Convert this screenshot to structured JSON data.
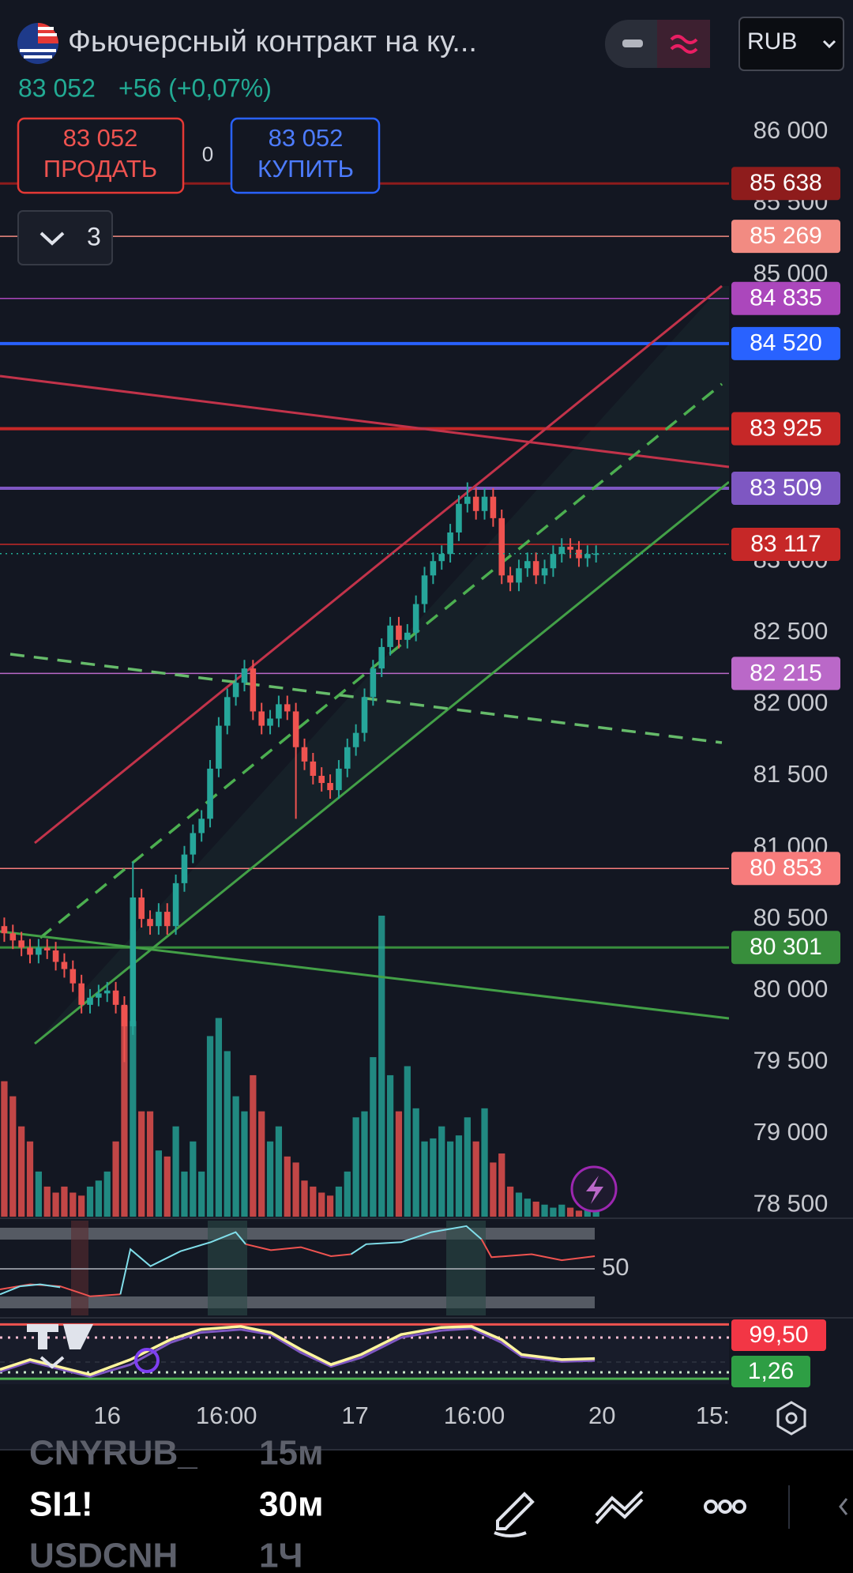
{
  "header": {
    "title": "Фьючерсный контракт на ку...",
    "price": "83 052",
    "change": "+56 (+0,07%)",
    "currency": "RUB"
  },
  "trade": {
    "sell_price": "83 052",
    "sell_label": "ПРОДАТЬ",
    "spread": "0",
    "buy_price": "83 052",
    "buy_label": "КУПИТЬ"
  },
  "layers_count": "3",
  "chart_data": {
    "type": "candlestick",
    "up_color": "#26a69a",
    "down_color": "#ef5350",
    "xlim": [
      0,
      85
    ],
    "xticks": [
      {
        "value": 12.5,
        "label": "16"
      },
      {
        "value": 26.4,
        "label": "16:00"
      },
      {
        "value": 41.4,
        "label": "17"
      },
      {
        "value": 55.3,
        "label": "16:00"
      },
      {
        "value": 70.2,
        "label": "20"
      },
      {
        "value": 83.1,
        "label": "15:"
      }
    ],
    "ylim": [
      78420,
      86920
    ],
    "yticks": [
      {
        "value": 86000,
        "label": "86 000"
      },
      {
        "value": 85500,
        "label": "85 500"
      },
      {
        "value": 85000,
        "label": "85 000"
      },
      {
        "value": 83000,
        "label": "83 000"
      },
      {
        "value": 82500,
        "label": "82 500"
      },
      {
        "value": 82000,
        "label": "82 000"
      },
      {
        "value": 81500,
        "label": "81 500"
      },
      {
        "value": 81000,
        "label": "81 000"
      },
      {
        "value": 80500,
        "label": "80 500"
      },
      {
        "value": 80000,
        "label": "80 000"
      },
      {
        "value": 79500,
        "label": "79 500"
      },
      {
        "value": 79000,
        "label": "79 000"
      },
      {
        "value": 78500,
        "label": "78 500"
      }
    ],
    "open": [
      80450,
      80400,
      80350,
      80300,
      80250,
      80300,
      80280,
      80200,
      80150,
      80050,
      79900,
      79950,
      79980,
      80000,
      79900,
      79750,
      80650,
      80500,
      80450,
      80550,
      80450,
      80750,
      80950,
      81100,
      81200,
      81550,
      81850,
      82050,
      82150,
      82250,
      81950,
      81850,
      81900,
      82000,
      81950,
      81700,
      81600,
      81500,
      81450,
      81400,
      81550,
      81700,
      81800,
      82050,
      82250,
      82400,
      82550,
      82450,
      82500,
      82700,
      82900,
      83000,
      83050,
      83200,
      83400,
      83450,
      83350,
      83450,
      83300,
      82900,
      82850,
      82950,
      83000,
      82900,
      82950,
      83050,
      83100,
      83080,
      83020,
      83050
    ],
    "high": [
      80510,
      80460,
      80410,
      80360,
      80360,
      80360,
      80340,
      80260,
      80210,
      80110,
      80010,
      80040,
      80060,
      80060,
      79960,
      80900,
      80710,
      80560,
      80610,
      80610,
      80810,
      81010,
      81160,
      81260,
      81610,
      81910,
      82110,
      82210,
      82310,
      82310,
      82010,
      81960,
      82060,
      82060,
      82010,
      81760,
      81660,
      81560,
      81510,
      81610,
      81760,
      81860,
      82110,
      82310,
      82460,
      82610,
      82610,
      82560,
      82760,
      82960,
      83060,
      83110,
      83260,
      83460,
      83550,
      83510,
      83510,
      83510,
      83360,
      82960,
      83010,
      83060,
      83060,
      83010,
      83110,
      83160,
      83160,
      83140,
      83110,
      83110
    ],
    "low": [
      80340,
      80290,
      80240,
      80190,
      80190,
      80220,
      80140,
      80090,
      79990,
      79840,
      79840,
      79890,
      79920,
      79840,
      79500,
      79690,
      80440,
      80390,
      80390,
      80390,
      80390,
      80690,
      80890,
      81040,
      81140,
      81490,
      81790,
      81990,
      82090,
      81890,
      81790,
      81790,
      81840,
      81890,
      81200,
      81540,
      81440,
      81390,
      81340,
      81340,
      81490,
      81640,
      81740,
      81990,
      82190,
      82340,
      82390,
      82390,
      82440,
      82640,
      82840,
      82940,
      82990,
      83140,
      83340,
      83290,
      83290,
      83240,
      82840,
      82790,
      82790,
      82890,
      82840,
      82840,
      82890,
      82990,
      83020,
      82960,
      82960,
      82990
    ],
    "close": [
      80400,
      80350,
      80300,
      80250,
      80300,
      80280,
      80200,
      80150,
      80050,
      79900,
      79950,
      79980,
      80000,
      79900,
      79750,
      80650,
      80500,
      80450,
      80550,
      80450,
      80750,
      80950,
      81100,
      81200,
      81550,
      81850,
      82050,
      82150,
      82250,
      81950,
      81850,
      81900,
      82000,
      81950,
      81700,
      81600,
      81500,
      81450,
      81400,
      81550,
      81700,
      81800,
      82050,
      82250,
      82400,
      82550,
      82450,
      82500,
      82700,
      82900,
      83000,
      83050,
      83200,
      83400,
      83450,
      83350,
      83450,
      83300,
      82900,
      82850,
      82950,
      83000,
      82900,
      82950,
      83050,
      83100,
      83080,
      83020,
      83050,
      83052
    ],
    "volume": [
      45,
      40,
      30,
      25,
      15,
      10,
      8,
      10,
      8,
      7,
      10,
      12,
      15,
      25,
      70,
      65,
      35,
      35,
      22,
      20,
      30,
      15,
      25,
      15,
      60,
      66,
      55,
      40,
      35,
      47,
      35,
      25,
      30,
      20,
      18,
      12,
      10,
      8,
      7,
      10,
      15,
      33,
      35,
      53,
      100,
      47,
      35,
      50,
      36,
      25,
      26,
      30,
      25,
      27,
      33,
      25,
      36,
      18,
      21,
      10,
      8,
      6,
      5,
      4,
      3,
      4,
      3,
      2,
      3,
      2
    ],
    "vlim": [
      0,
      100
    ],
    "levels": [
      {
        "value": 85638,
        "label": "85 638",
        "color": "#8e1c1c",
        "line_width": 3
      },
      {
        "value": 85269,
        "label": "85 269",
        "color": "#f28b82",
        "line_width": 1.5
      },
      {
        "value": 84835,
        "label": "84 835",
        "color": "#ab47bc",
        "line_width": 1.5
      },
      {
        "value": 84520,
        "label": "84 520",
        "color": "#2962ff",
        "line_width": 4
      },
      {
        "value": 83925,
        "label": "83 925",
        "color": "#c62828",
        "line_width": 4
      },
      {
        "value": 83509,
        "label": "83 509",
        "color": "#7e57c2",
        "line_width": 4
      },
      {
        "value": 83117,
        "label": "83 117",
        "color": "#c62828",
        "line_width": 1.5
      },
      {
        "value": 82215,
        "label": "82 215",
        "color": "#ba68c8",
        "line_width": 1.5
      },
      {
        "value": 80853,
        "label": "80 853",
        "color": "#f77c7c",
        "line_width": 1.5
      },
      {
        "value": 80301,
        "label": "80 301",
        "color": "#388e3c",
        "line_width": 3
      }
    ]
  },
  "indicators": {
    "rsi_tick": 50,
    "stoch_high": {
      "value": 99.5,
      "label": "99,50"
    },
    "stoch_low": {
      "value": 1.26,
      "label": "1,26"
    }
  },
  "watchlist": [
    {
      "symbol": "CNYRUB_",
      "interval": "15м"
    },
    {
      "symbol": "SI1!",
      "interval": "30м"
    },
    {
      "symbol": "USDCNH",
      "interval": "1Ч"
    }
  ]
}
